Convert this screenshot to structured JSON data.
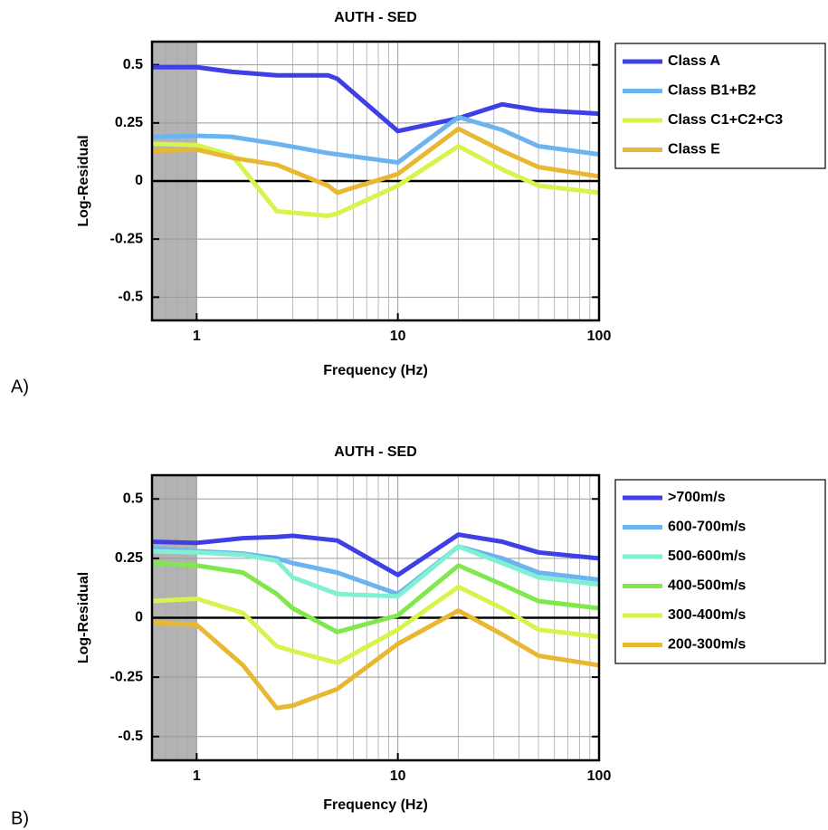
{
  "chart_data": [
    {
      "type": "line",
      "title": "AUTH - SED",
      "x_label": "Frequency (Hz)",
      "y_label": "Log-Residual",
      "annotation": "A)",
      "x": [
        0.6,
        1,
        1.5,
        2.5,
        4.5,
        5,
        10,
        20,
        33,
        50,
        100
      ],
      "series": [
        {
          "name": "Class A",
          "color": "#3f3fe6",
          "values": [
            0.49,
            0.49,
            0.47,
            0.455,
            0.455,
            0.44,
            0.215,
            0.27,
            0.33,
            0.305,
            0.29
          ]
        },
        {
          "name": "Class B1+B2",
          "color": "#6cb4f0",
          "values": [
            0.19,
            0.195,
            0.19,
            0.16,
            0.12,
            0.115,
            0.08,
            0.275,
            0.22,
            0.15,
            0.115
          ]
        },
        {
          "name": "Class C1+C2+C3",
          "color": "#d6f54c",
          "values": [
            0.16,
            0.155,
            0.11,
            -0.13,
            -0.15,
            -0.14,
            -0.02,
            0.15,
            0.05,
            -0.02,
            -0.05
          ]
        },
        {
          "name": "Class E",
          "color": "#e8b832",
          "values": [
            0.13,
            0.135,
            0.1,
            0.07,
            -0.02,
            -0.05,
            0.03,
            0.225,
            0.13,
            0.06,
            0.02
          ]
        }
      ],
      "xlim": [
        0.6,
        100
      ],
      "ylim": [
        -0.6,
        0.6
      ],
      "log_x": true,
      "grid": true,
      "xticks": [
        1,
        10,
        100
      ],
      "yticks": [
        -0.5,
        -0.25,
        0,
        0.25,
        0.5
      ],
      "shade_x": [
        0.6,
        1
      ],
      "shade_color": "#b3b3b3",
      "legend": "outside-right"
    },
    {
      "type": "line",
      "title": "AUTH - SED",
      "x_label": "Frequency (Hz)",
      "y_label": "Log-Residual",
      "annotation": "B)",
      "x": [
        0.6,
        1,
        1.7,
        2.5,
        3,
        5,
        10,
        20,
        33,
        50,
        100
      ],
      "series": [
        {
          "name": ">700m/s",
          "color": "#3f3fe6",
          "values": [
            0.32,
            0.315,
            0.335,
            0.34,
            0.345,
            0.325,
            0.18,
            0.35,
            0.32,
            0.275,
            0.25
          ]
        },
        {
          "name": "600-700m/s",
          "color": "#6cb4f0",
          "values": [
            0.29,
            0.28,
            0.27,
            0.25,
            0.23,
            0.19,
            0.1,
            0.3,
            0.25,
            0.19,
            0.16
          ]
        },
        {
          "name": "500-600m/s",
          "color": "#80f0d2",
          "values": [
            0.28,
            0.275,
            0.265,
            0.24,
            0.17,
            0.1,
            0.09,
            0.3,
            0.23,
            0.17,
            0.14
          ]
        },
        {
          "name": "400-500m/s",
          "color": "#80e84c",
          "values": [
            0.23,
            0.22,
            0.19,
            0.1,
            0.04,
            -0.06,
            0.01,
            0.22,
            0.14,
            0.07,
            0.04
          ]
        },
        {
          "name": "300-400m/s",
          "color": "#d6f54c",
          "values": [
            0.07,
            0.08,
            0.02,
            -0.12,
            -0.14,
            -0.19,
            -0.05,
            0.13,
            0.04,
            -0.05,
            -0.08
          ]
        },
        {
          "name": "200-300m/s",
          "color": "#e8b832",
          "values": [
            -0.02,
            -0.03,
            -0.2,
            -0.38,
            -0.37,
            -0.3,
            -0.11,
            0.03,
            -0.07,
            -0.16,
            -0.2
          ]
        }
      ],
      "xlim": [
        0.6,
        100
      ],
      "ylim": [
        -0.6,
        0.6
      ],
      "log_x": true,
      "grid": true,
      "xticks": [
        1,
        10,
        100
      ],
      "yticks": [
        -0.5,
        -0.25,
        0,
        0.25,
        0.5
      ],
      "shade_x": [
        0.6,
        1
      ],
      "shade_color": "#b3b3b3",
      "legend": "outside-right"
    }
  ]
}
